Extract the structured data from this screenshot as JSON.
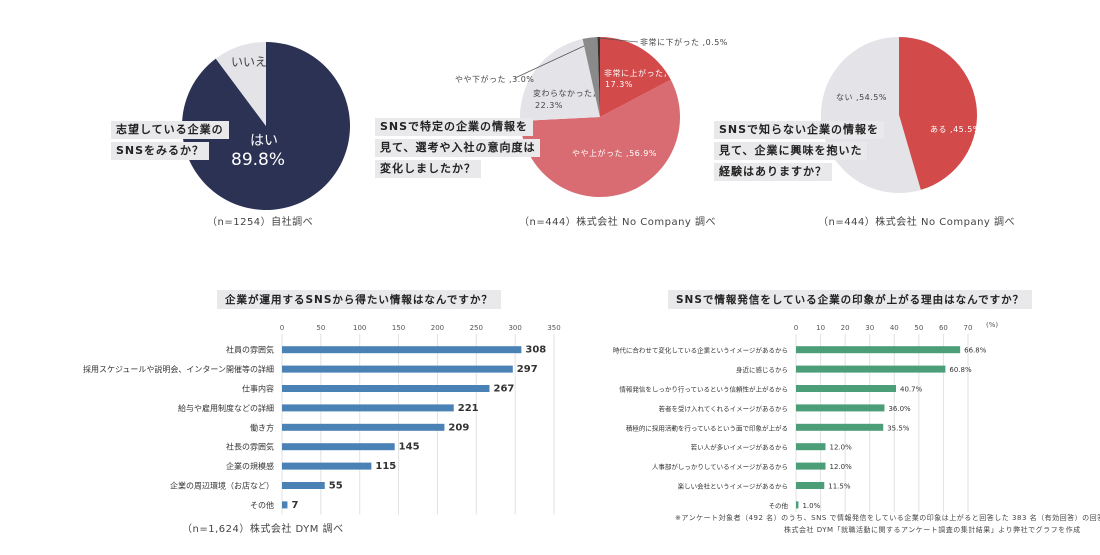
{
  "colors": {
    "navy": "#2b3253",
    "light": "#e3e3e8",
    "red": "#d24a4a",
    "pink": "#d96c72",
    "dark": "#333333",
    "blue": "#4a82b6",
    "green": "#4b9e78"
  },
  "pie1": {
    "question_lines": [
      "志望している企業の",
      "SNSをみるか？"
    ],
    "slices": [
      {
        "label": "はい",
        "value_text": "89.8%",
        "value": 89.8
      },
      {
        "label": "いいえ",
        "value_text": "",
        "value": 10.2
      }
    ],
    "note": "（n=1254）自社調べ"
  },
  "pie2": {
    "question_lines": [
      "SNSで特定の企業の情報を",
      "見て、選考や入社の意向度は",
      "変化しましたか？"
    ],
    "slices": [
      {
        "label": "非常に上がった，17.3%",
        "value": 17.3
      },
      {
        "label": "やや上がった ,56.9%",
        "value": 56.9
      },
      {
        "label": "変わらなかった，22.3%",
        "value": 22.3
      },
      {
        "label": "やや下がった ,3.0%",
        "value": 3.0
      },
      {
        "label": "非常に下がった ,0.5%",
        "value": 0.5
      }
    ],
    "label_lines": {
      "very_up": [
        "非常に上がった，",
        "17.3%"
      ],
      "up": "やや上がった ,56.9%",
      "same": [
        "変わらなかった，",
        "22.3%"
      ],
      "down": "やや下がった ,3.0%",
      "very_down": "非常に下がった ,0.5%"
    },
    "note": "（n=444）株式会社 No Company 調べ"
  },
  "pie3": {
    "question_lines": [
      "SNSで知らない企業の情報を",
      "見て、企業に興味を抱いた",
      "経験はありますか？"
    ],
    "slices": [
      {
        "label": "ある ,45.5%",
        "value": 45.5
      },
      {
        "label": "ない ,54.5%",
        "value": 54.5
      }
    ],
    "note": "（n=444）株式会社 No Company 調べ"
  },
  "chart_data": [
    {
      "type": "bar",
      "orientation": "horizontal",
      "title": "企業が運用するSNSから得たい情報はなんですか？",
      "categories": [
        "社員の雰囲気",
        "採用スケジュールや説明会、インターン開催等の詳細",
        "仕事内容",
        "給与や雇用制度などの詳細",
        "働き方",
        "社長の雰囲気",
        "企業の規模感",
        "企業の周辺環境（お店など）",
        "その他"
      ],
      "values": [
        308,
        297,
        267,
        221,
        209,
        145,
        115,
        55,
        7
      ],
      "xlim": [
        0,
        350
      ],
      "ticks": [
        0,
        50,
        100,
        150,
        200,
        250,
        300,
        350
      ],
      "note": "（n=1,624）株式会社 DYM 調べ"
    },
    {
      "type": "bar",
      "orientation": "horizontal",
      "title": "SNSで情報発信をしている企業の印象が上がる理由はなんですか？",
      "categories": [
        "時代に合わせて変化している企業というイメージがあるから",
        "身近に感じるから",
        "情報発信をしっかり行っているという信頼性が上がるから",
        "若者を受け入れてくれるイメージがあるから",
        "積極的に採用活動を行っているという面で印象が上がる",
        "若い人が多いイメージがあるから",
        "人事部がしっかりしているイメージがあるから",
        "楽しい会社というイメージがあるから",
        "その他"
      ],
      "values": [
        66.8,
        60.8,
        40.7,
        36.0,
        35.5,
        12.0,
        12.0,
        11.5,
        1.0
      ],
      "value_labels": [
        "66.8%",
        "60.8%",
        "40.7%",
        "36.0%",
        "35.5%",
        "12.0%",
        "12.0%",
        "11.5%",
        "1.0%"
      ],
      "xlim": [
        0,
        70
      ],
      "ticks": [
        0,
        10,
        20,
        30,
        40,
        50,
        60,
        70
      ],
      "unit": "(%)",
      "notes": [
        "※アンケート対象者（492 名）のうち、SNS で情報発信をしている企業の印象は上がると回答した 383 名（有効回答）の回答を集計",
        "株式会社 DYM「就職活動に関するアンケート調査の集計結果」より弊社でグラフを作成"
      ]
    }
  ]
}
